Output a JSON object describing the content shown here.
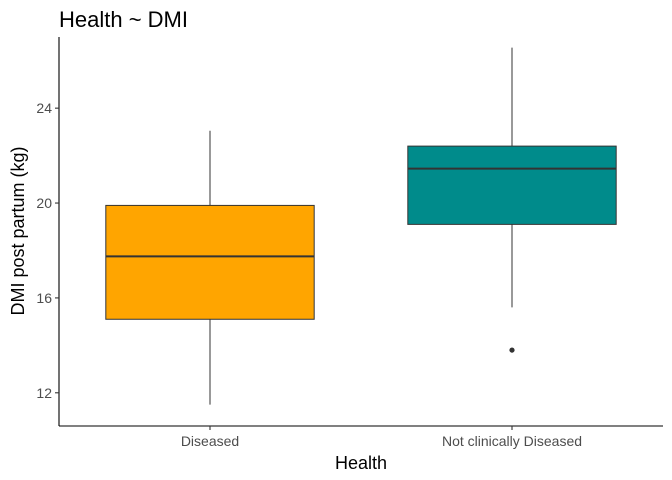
{
  "chart_data": {
    "type": "box",
    "title": "Health ~ DMI",
    "xlabel": "Health",
    "ylabel": "DMI post partum (kg)",
    "categories": [
      "Diseased",
      "Not clinically Diseased"
    ],
    "colors": [
      "#FFA500",
      "#008B8B"
    ],
    "ylim": [
      10.6,
      27.0
    ],
    "yticks": [
      12,
      16,
      20,
      24
    ],
    "boxes": [
      {
        "category": "Diseased",
        "min": 11.5,
        "q1": 15.1,
        "median": 17.75,
        "q3": 19.9,
        "max": 23.05,
        "outliers": []
      },
      {
        "category": "Not clinically Diseased",
        "min": 15.6,
        "q1": 19.1,
        "median": 21.45,
        "q3": 22.4,
        "max": 26.55,
        "outliers": [
          13.8
        ]
      }
    ],
    "grid": false,
    "legend": "none"
  }
}
